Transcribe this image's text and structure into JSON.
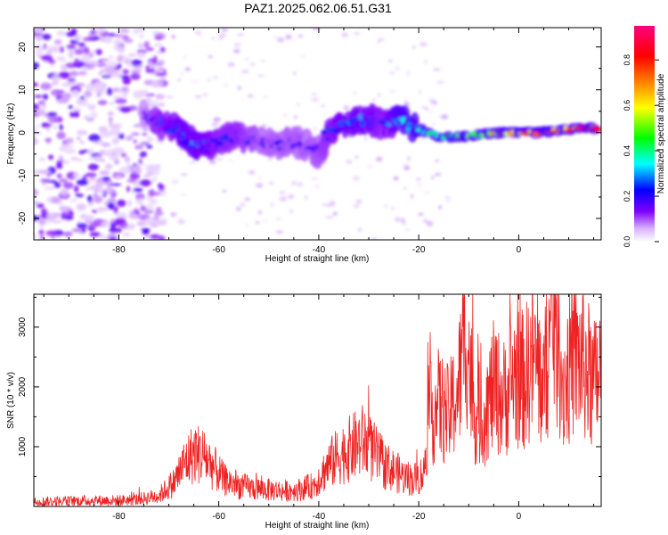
{
  "title": "PAZ1.2025.062.06.51.G31",
  "chart_data": [
    {
      "type": "heatmap",
      "xlabel": "Height of straight line (km)",
      "ylabel": "Frequency (Hz)",
      "xlim": [
        -97,
        16.5
      ],
      "ylim": [
        -25,
        24.5
      ],
      "xticks": [
        -80,
        -60,
        -40,
        -20,
        0
      ],
      "yticks": [
        -20,
        -10,
        0,
        10,
        20
      ],
      "colorbar": {
        "label": "Normalized spectral amplitude",
        "range": [
          0,
          0.95
        ],
        "ticks": [
          "0.0",
          "0.2",
          "0.4",
          "0.6",
          "0.8"
        ],
        "colormap": [
          "#ffffff",
          "#8000ff",
          "#0000ff",
          "#00ffff",
          "#00ff00",
          "#ffff00",
          "#ff8000",
          "#ff0000",
          "#ff0080"
        ]
      },
      "ridge": [
        {
          "x": -75,
          "y": 4,
          "amp": 0.15
        },
        {
          "x": -72,
          "y": 2,
          "amp": 0.25
        },
        {
          "x": -68,
          "y": 1,
          "amp": 0.3
        },
        {
          "x": -66,
          "y": -2,
          "amp": 0.3
        },
        {
          "x": -63,
          "y": -3,
          "amp": 0.3
        },
        {
          "x": -60,
          "y": -2,
          "amp": 0.25
        },
        {
          "x": -56,
          "y": -1,
          "amp": 0.25
        },
        {
          "x": -52,
          "y": -2,
          "amp": 0.2
        },
        {
          "x": -48,
          "y": -3,
          "amp": 0.2
        },
        {
          "x": -44,
          "y": -2,
          "amp": 0.2
        },
        {
          "x": -40,
          "y": -5,
          "amp": 0.2
        },
        {
          "x": -38,
          "y": 0,
          "amp": 0.25
        },
        {
          "x": -35,
          "y": 2,
          "amp": 0.3
        },
        {
          "x": -30,
          "y": 3,
          "amp": 0.3
        },
        {
          "x": -27,
          "y": 2,
          "amp": 0.25
        },
        {
          "x": -24,
          "y": 3,
          "amp": 0.35
        },
        {
          "x": -20,
          "y": 1,
          "amp": 0.4
        },
        {
          "x": -16,
          "y": -1,
          "amp": 0.45
        },
        {
          "x": -12,
          "y": -1,
          "amp": 0.5
        },
        {
          "x": -8,
          "y": -0.5,
          "amp": 0.6
        },
        {
          "x": -4,
          "y": 0,
          "amp": 0.7
        },
        {
          "x": 0,
          "y": 0,
          "amp": 0.75
        },
        {
          "x": 4,
          "y": 0,
          "amp": 0.8
        },
        {
          "x": 8,
          "y": 0.5,
          "amp": 0.8
        },
        {
          "x": 12,
          "y": 1,
          "amp": 0.85
        },
        {
          "x": 16,
          "y": 1,
          "amp": 0.9
        }
      ]
    },
    {
      "type": "line",
      "xlabel": "Height of straight line (km)",
      "ylabel": "SNR (10 * v/v)",
      "xlim": [
        -97,
        16.5
      ],
      "ylim": [
        0,
        3550
      ],
      "xticks": [
        -80,
        -60,
        -40,
        -20,
        0
      ],
      "yticks": [
        1000,
        2000,
        3000
      ],
      "line_color": "#ee2222",
      "x": [
        -97,
        -90,
        -85,
        -80,
        -76,
        -72,
        -69,
        -67,
        -65,
        -63,
        -61,
        -59,
        -56,
        -53,
        -50,
        -47,
        -44,
        -41,
        -38,
        -36,
        -33,
        -31,
        -29,
        -27,
        -25,
        -23,
        -21,
        -19,
        -18,
        -16,
        -14,
        -12,
        -10.5,
        -9,
        -7,
        -5,
        -3,
        -1,
        1,
        3,
        5,
        7,
        9,
        11,
        13,
        15,
        16.5
      ],
      "values": [
        80,
        90,
        100,
        100,
        120,
        180,
        400,
        700,
        900,
        850,
        650,
        450,
        350,
        300,
        280,
        260,
        280,
        350,
        700,
        850,
        1000,
        1100,
        900,
        700,
        600,
        500,
        450,
        550,
        1500,
        1700,
        1500,
        2000,
        3000,
        1600,
        1500,
        2000,
        1800,
        2200,
        2100,
        2500,
        2000,
        3200,
        2000,
        2500,
        2400,
        2000,
        2300
      ]
    }
  ]
}
